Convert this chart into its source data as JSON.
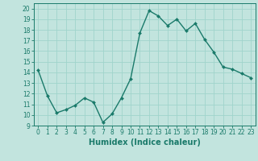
{
  "x": [
    0,
    1,
    2,
    3,
    4,
    5,
    6,
    7,
    8,
    9,
    10,
    11,
    12,
    13,
    14,
    15,
    16,
    17,
    18,
    19,
    20,
    21,
    22,
    23
  ],
  "y": [
    14.2,
    11.8,
    10.2,
    10.5,
    10.9,
    11.6,
    11.2,
    9.3,
    10.1,
    11.6,
    13.4,
    17.7,
    19.8,
    19.3,
    18.4,
    19.0,
    17.9,
    18.6,
    17.1,
    15.9,
    14.5,
    14.3,
    13.9,
    13.5
  ],
  "line_color": "#1a7a6a",
  "marker": "D",
  "marker_size": 2,
  "linewidth": 1.0,
  "xlabel": "Humidex (Indice chaleur)",
  "xlabel_fontsize": 7,
  "xlim": [
    -0.5,
    23.5
  ],
  "ylim": [
    9,
    20.5
  ],
  "yticks": [
    9,
    10,
    11,
    12,
    13,
    14,
    15,
    16,
    17,
    18,
    19,
    20
  ],
  "xticks": [
    0,
    1,
    2,
    3,
    4,
    5,
    6,
    7,
    8,
    9,
    10,
    11,
    12,
    13,
    14,
    15,
    16,
    17,
    18,
    19,
    20,
    21,
    22,
    23
  ],
  "grid_color": "#a0d4cc",
  "bg_color": "#c2e4de",
  "tick_fontsize": 5.5,
  "tick_color": "#1a7a6a",
  "axis_color": "#1a7a6a"
}
